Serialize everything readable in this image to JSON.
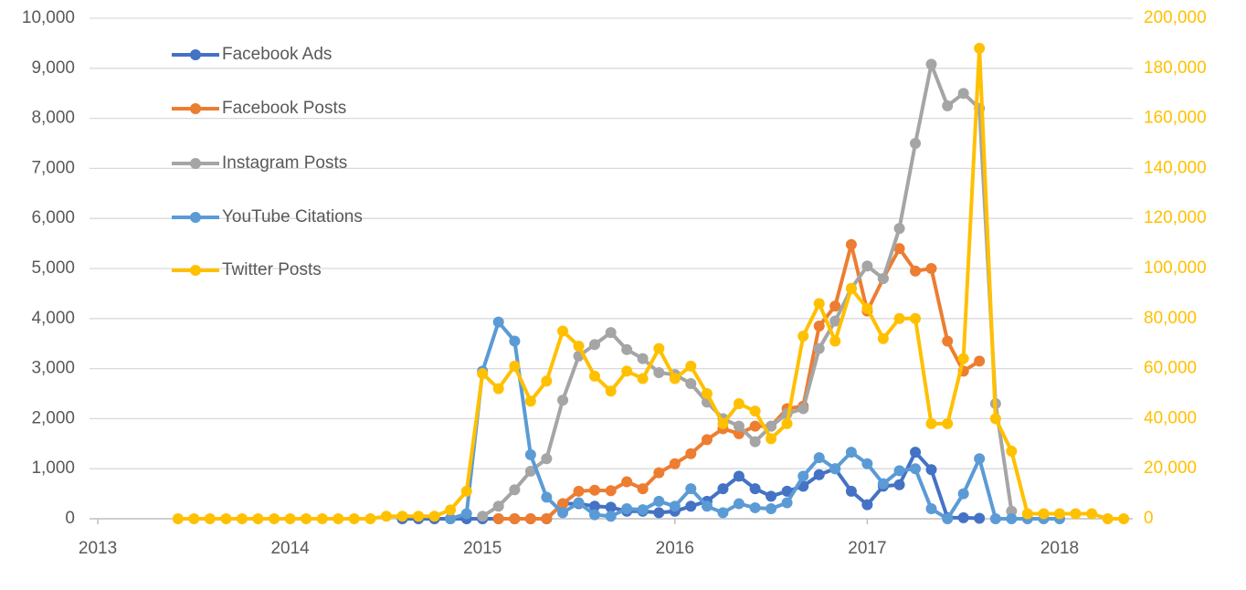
{
  "chart_data": {
    "type": "line",
    "x": [
      2013.417,
      2013.5,
      2013.583,
      2013.667,
      2013.75,
      2013.833,
      2013.917,
      2014.0,
      2014.083,
      2014.167,
      2014.25,
      2014.333,
      2014.417,
      2014.5,
      2014.583,
      2014.667,
      2014.75,
      2014.833,
      2014.917,
      2015.0,
      2015.083,
      2015.167,
      2015.25,
      2015.333,
      2015.417,
      2015.5,
      2015.583,
      2015.667,
      2015.75,
      2015.833,
      2015.917,
      2016.0,
      2016.083,
      2016.167,
      2016.25,
      2016.333,
      2016.417,
      2016.5,
      2016.583,
      2016.667,
      2016.75,
      2016.833,
      2016.917,
      2017.0,
      2017.083,
      2017.167,
      2017.25,
      2017.333,
      2017.417,
      2017.5,
      2017.583,
      2017.667,
      2017.75,
      2017.833,
      2017.917,
      2018.0,
      2018.083,
      2018.167,
      2018.25,
      2018.333
    ],
    "xlim": [
      2012.957,
      2018.38
    ],
    "xticks": [
      2013,
      2014,
      2015,
      2016,
      2017,
      2018
    ],
    "ylim": [
      0,
      10000
    ],
    "yticks": [
      0,
      {
        "value": 1000,
        "label": "1,000"
      },
      {
        "value": 2000,
        "label": "2,000"
      },
      {
        "value": 3000,
        "label": "3,000"
      },
      {
        "value": 4000,
        "label": "4,000"
      },
      {
        "value": 5000,
        "label": "5,000"
      },
      {
        "value": 6000,
        "label": "6,000"
      },
      {
        "value": 7000,
        "label": "7,000"
      },
      {
        "value": 8000,
        "label": "8,000"
      },
      {
        "value": 9000,
        "label": "9,000"
      },
      {
        "value": 10000,
        "label": "10,000"
      }
    ],
    "y2lim": [
      0,
      200000
    ],
    "y2ticks": [
      0,
      {
        "value": 20000,
        "label": "20,000"
      },
      {
        "value": 40000,
        "label": "40,000"
      },
      {
        "value": 60000,
        "label": "60,000"
      },
      {
        "value": 80000,
        "label": "80,000"
      },
      {
        "value": 100000,
        "label": "100,000"
      },
      {
        "value": 120000,
        "label": "120,000"
      },
      {
        "value": 140000,
        "label": "140,000"
      },
      {
        "value": 160000,
        "label": "160,000"
      },
      {
        "value": 180000,
        "label": "180,000"
      },
      {
        "value": 200000,
        "label": "200,000"
      }
    ],
    "grid": true,
    "legend": "upper left",
    "series": [
      {
        "name": "Facebook Ads",
        "color": "#4472c4",
        "values": [
          null,
          null,
          null,
          null,
          null,
          null,
          null,
          null,
          null,
          null,
          null,
          null,
          null,
          null,
          0,
          0,
          0,
          0,
          0,
          0,
          0,
          0,
          0,
          0,
          300,
          300,
          250,
          230,
          150,
          150,
          120,
          150,
          250,
          350,
          600,
          850,
          600,
          450,
          550,
          650,
          880,
          1000,
          550,
          280,
          650,
          680,
          1330,
          980,
          20,
          20,
          10,
          null,
          null,
          null,
          null,
          null,
          null,
          null,
          null,
          null
        ]
      },
      {
        "name": "Facebook Posts",
        "color": "#ed7d31",
        "values": [
          null,
          null,
          null,
          null,
          null,
          null,
          null,
          null,
          null,
          null,
          null,
          null,
          null,
          null,
          null,
          null,
          null,
          null,
          null,
          null,
          0,
          0,
          0,
          0,
          300,
          550,
          570,
          560,
          740,
          600,
          920,
          1100,
          1300,
          1580,
          1800,
          1700,
          1850,
          1850,
          2200,
          2250,
          3850,
          4250,
          5480,
          4150,
          4800,
          5400,
          4950,
          5000,
          3550,
          2950,
          3150,
          null,
          null,
          null,
          null,
          null,
          null,
          null,
          null,
          null
        ]
      },
      {
        "name": "Instagram Posts",
        "color": "#a5a5a5",
        "values": [
          null,
          null,
          null,
          null,
          null,
          null,
          null,
          null,
          null,
          null,
          null,
          null,
          null,
          null,
          null,
          null,
          null,
          null,
          null,
          50,
          250,
          580,
          950,
          1200,
          2370,
          3250,
          3480,
          3720,
          3380,
          3200,
          2920,
          2880,
          2700,
          2330,
          2000,
          1850,
          1540,
          1850,
          2100,
          2200,
          3400,
          3950,
          4600,
          5050,
          4800,
          5800,
          7500,
          9080,
          8250,
          8500,
          8200,
          2300,
          150,
          null,
          null,
          null,
          null,
          null,
          null,
          null
        ]
      },
      {
        "name": "YouTube Citations",
        "color": "#5b9bd5",
        "values": [
          null,
          null,
          null,
          null,
          null,
          null,
          null,
          null,
          null,
          null,
          null,
          null,
          null,
          null,
          null,
          null,
          null,
          0,
          100,
          2950,
          3930,
          3550,
          1280,
          430,
          120,
          320,
          80,
          50,
          200,
          180,
          350,
          250,
          600,
          250,
          120,
          300,
          220,
          200,
          320,
          850,
          1220,
          1000,
          1330,
          1100,
          700,
          960,
          1000,
          200,
          0,
          500,
          1200,
          0,
          0,
          0,
          0,
          0,
          null,
          null,
          null,
          null
        ]
      },
      {
        "name": "Twitter Posts",
        "color": "#ffc000",
        "axis": "y2",
        "values": [
          0,
          0,
          0,
          0,
          0,
          0,
          0,
          0,
          0,
          0,
          0,
          0,
          0,
          1000,
          1000,
          1000,
          1000,
          3500,
          11000,
          58000,
          52000,
          61000,
          47000,
          55000,
          75000,
          69000,
          57000,
          51000,
          59000,
          56000,
          68000,
          56000,
          61000,
          50000,
          38000,
          46000,
          43000,
          32000,
          38000,
          73000,
          86000,
          71000,
          92000,
          84000,
          72000,
          80000,
          80000,
          38000,
          38000,
          64000,
          188000,
          40000,
          27000,
          2000,
          2000,
          2000,
          2000,
          2000,
          0,
          0
        ]
      }
    ]
  }
}
